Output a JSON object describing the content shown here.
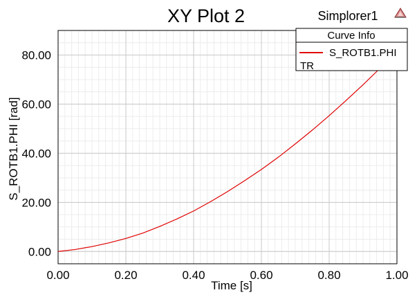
{
  "header": {
    "title": "XY Plot 2",
    "app_name": "Simplorer1",
    "app_icon": "simplorer-logo-icon"
  },
  "legend": {
    "header": "Curve Info",
    "entries": [
      {
        "label": "S_ROTB1.PHI",
        "color": "#e00000"
      }
    ],
    "context": "TR"
  },
  "chart_data": {
    "type": "line",
    "title": "XY Plot 2",
    "xlabel": "Time [s]",
    "ylabel": "S_ROTB1.PHI [rad]",
    "xlim": [
      0,
      1
    ],
    "ylim": [
      -5,
      90
    ],
    "x_ticks": [
      "0.00",
      "0.20",
      "0.40",
      "0.60",
      "0.80",
      "1.00"
    ],
    "y_ticks": [
      "0.00",
      "20.00",
      "40.00",
      "60.00",
      "80.00"
    ],
    "grid": true,
    "legend_position": "top-right",
    "series": [
      {
        "name": "S_ROTB1.PHI",
        "color": "#e00000",
        "x": [
          0.0,
          0.05,
          0.1,
          0.15,
          0.2,
          0.25,
          0.3,
          0.35,
          0.4,
          0.45,
          0.5,
          0.55,
          0.6,
          0.65,
          0.7,
          0.75,
          0.8,
          0.85,
          0.9,
          0.95,
          1.0
        ],
        "y": [
          0.0,
          0.8,
          2.0,
          3.5,
          5.3,
          7.5,
          10.2,
          13.2,
          16.5,
          20.3,
          24.4,
          28.8,
          33.4,
          38.4,
          43.8,
          49.4,
          55.3,
          61.5,
          67.9,
          74.6,
          81.5
        ]
      }
    ]
  }
}
